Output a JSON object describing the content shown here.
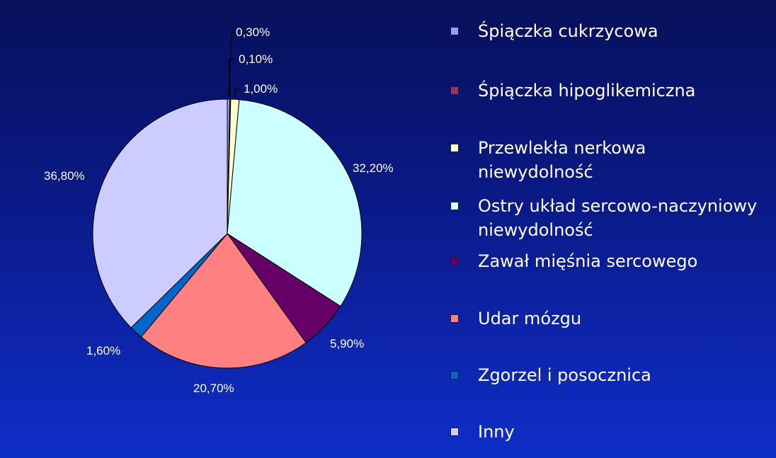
{
  "chart_data": {
    "type": "pie",
    "title": "",
    "slices": [
      {
        "label": "Śpiączka cukrzycowa",
        "value": 0.3,
        "value_label": "0,30%",
        "color": "#9999ff"
      },
      {
        "label": "Śpiączka hipoglikemiczna",
        "value": 0.1,
        "value_label": "0,10%",
        "color": "#993366"
      },
      {
        "label": "Przewlekła nerkowa\nniewydolność",
        "value": 1.0,
        "value_label": "1,00%",
        "color": "#ffffcc"
      },
      {
        "label": "Ostry układ sercowo-naczyniowy\nniewydolność",
        "value": 32.2,
        "value_label": "32,20%",
        "color": "#ccffff"
      },
      {
        "label": "Zawał mięśnia sercowego",
        "value": 5.9,
        "value_label": "5,90%",
        "color": "#660066"
      },
      {
        "label": "Udar mózgu",
        "value": 20.7,
        "value_label": "20,70%",
        "color": "#ff8080"
      },
      {
        "label": "Zgorzel i posocznica",
        "value": 1.6,
        "value_label": "1,60%",
        "color": "#0066cc"
      },
      {
        "label": "Inny",
        "value": 36.8,
        "value_label": "36,80%",
        "color": "#ccccff"
      }
    ],
    "legend_position": "right",
    "unit": "%"
  }
}
